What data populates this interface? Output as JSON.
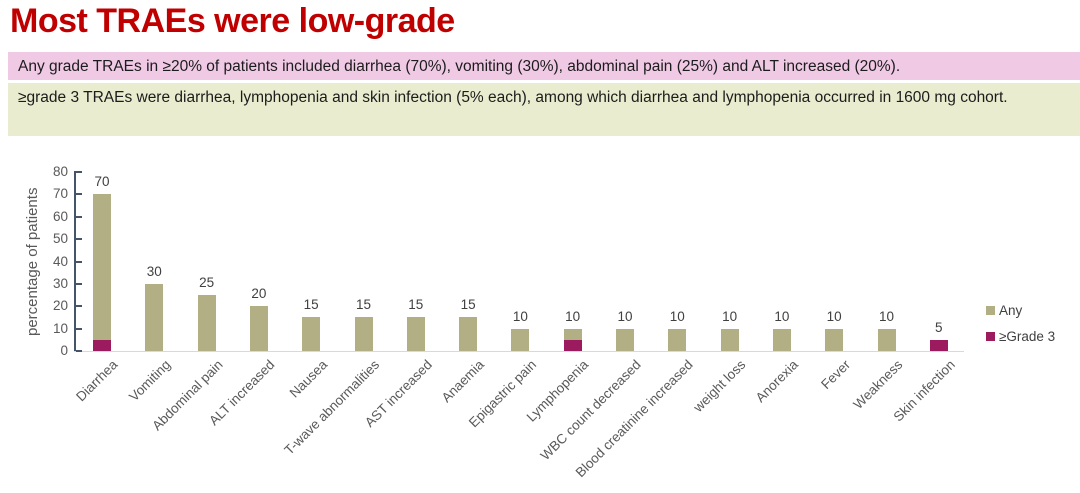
{
  "slide": {
    "title": "Most TRAEs were low-grade",
    "callout_any": {
      "text": "Any grade TRAEs in ≥20% of patients included diarrhea (70%), vomiting (30%), abdominal pain (25%) and ALT increased (20%)."
    },
    "callout_grade3": {
      "text": "≥grade 3 TRAEs were diarrhea, lymphopenia and skin infection (5% each), among which diarrhea and lymphopenia occurred in 1600 mg cohort."
    }
  },
  "colors": {
    "title": "#c00000",
    "callout_any_bg": "#f0c9e5",
    "callout_grade3_bg": "#e9ecce",
    "axis_line": "#44546a",
    "baseline": "#d9d9d9",
    "tick_text": "#595959",
    "data_label_text": "#404040"
  },
  "chart_data": {
    "type": "bar",
    "title": "",
    "xlabel": "",
    "ylabel": "percentage of patients",
    "ylim": [
      0,
      80
    ],
    "yticks": [
      0,
      10,
      20,
      30,
      40,
      50,
      60,
      70,
      80
    ],
    "grid": false,
    "legend_position": "right",
    "bar_layout": "overlapped",
    "categories": [
      "Diarrhea",
      "Vomiting",
      "Abdominal pain",
      "ALT increased",
      "Nausea",
      "T-wave abnormalities",
      "AST increased",
      "Anaemia",
      "Epigastric pain",
      "Lymphopenia",
      "WBC count decreased",
      "Blood creatinine increased",
      "weight loss",
      "Anorexia",
      "Fever",
      "Weakness",
      "Skin infection"
    ],
    "series": [
      {
        "name": "Any",
        "color": "#b3af84",
        "values": [
          70,
          30,
          25,
          20,
          15,
          15,
          15,
          15,
          10,
          10,
          10,
          10,
          10,
          10,
          10,
          10,
          5
        ]
      },
      {
        "name": "≥Grade 3",
        "color": "#9c1a5e",
        "values": [
          5,
          0,
          0,
          0,
          0,
          0,
          0,
          0,
          0,
          5,
          0,
          0,
          0,
          0,
          0,
          0,
          5
        ]
      }
    ],
    "data_labels": [
      70,
      30,
      25,
      20,
      15,
      15,
      15,
      15,
      10,
      10,
      10,
      10,
      10,
      10,
      10,
      10,
      5
    ]
  }
}
